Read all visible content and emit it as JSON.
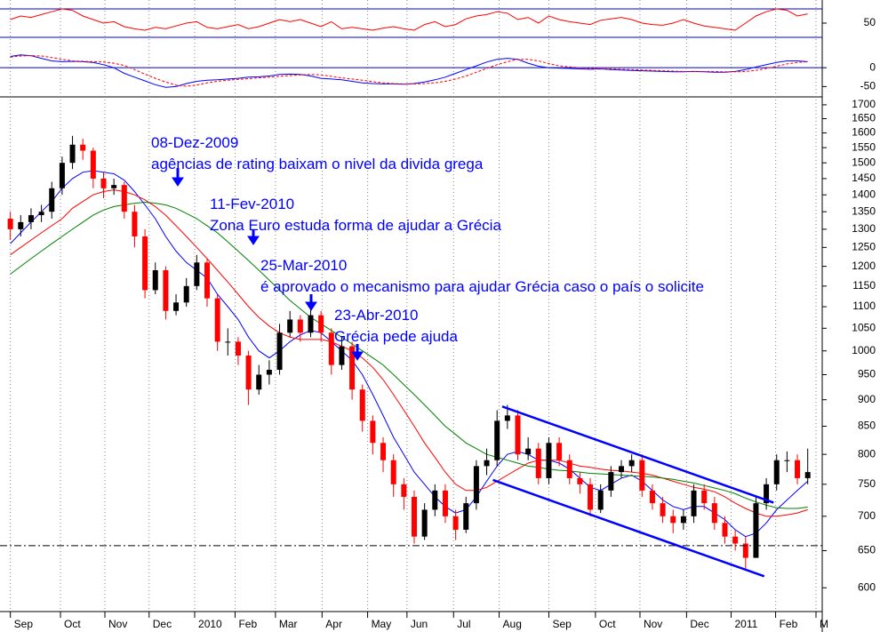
{
  "chart_data": [
    {
      "type": "candlestick",
      "x": [
        0,
        1,
        2,
        3,
        4,
        5,
        6,
        7,
        8,
        9,
        10,
        11,
        12,
        13,
        14,
        15,
        16,
        17,
        18,
        19,
        20,
        21,
        22,
        23,
        24,
        25,
        26,
        27,
        28,
        29,
        30,
        31,
        32,
        33,
        34,
        35,
        36,
        37,
        38,
        39,
        40,
        41,
        42,
        43,
        44,
        45,
        46,
        47,
        48,
        49,
        50,
        51,
        52,
        53,
        54,
        55,
        56,
        57,
        58,
        59,
        60,
        61,
        62,
        63,
        64,
        65,
        66,
        67,
        68,
        69,
        70,
        71,
        72,
        73,
        74,
        75,
        76,
        77
      ],
      "open": [
        1330,
        1300,
        1320,
        1340,
        1350,
        1420,
        1500,
        1560,
        1540,
        1450,
        1420,
        1430,
        1350,
        1280,
        1140,
        1190,
        1090,
        1110,
        1150,
        1210,
        1120,
        1020,
        1020,
        990,
        920,
        950,
        960,
        1040,
        1070,
        1040,
        1080,
        1040,
        970,
        1010,
        920,
        860,
        820,
        790,
        750,
        730,
        670,
        710,
        740,
        700,
        680,
        720,
        780,
        790,
        860,
        870,
        800,
        810,
        760,
        820,
        790,
        760,
        750,
        710,
        740,
        770,
        780,
        790,
        740,
        720,
        700,
        690,
        700,
        740,
        720,
        690,
        670,
        660,
        640,
        720,
        750,
        790,
        790,
        760
      ],
      "high": [
        1350,
        1340,
        1360,
        1370,
        1440,
        1520,
        1590,
        1580,
        1550,
        1470,
        1450,
        1440,
        1370,
        1300,
        1210,
        1200,
        1130,
        1170,
        1230,
        1220,
        1130,
        1050,
        1030,
        1000,
        970,
        980,
        1060,
        1090,
        1080,
        1100,
        1090,
        1050,
        1030,
        1020,
        930,
        870,
        830,
        800,
        760,
        740,
        720,
        750,
        750,
        710,
        730,
        790,
        810,
        880,
        890,
        880,
        830,
        820,
        830,
        830,
        800,
        770,
        760,
        750,
        780,
        790,
        800,
        800,
        750,
        730,
        710,
        710,
        750,
        750,
        730,
        700,
        680,
        670,
        730,
        760,
        800,
        805,
        800,
        810
      ],
      "low": [
        1270,
        1280,
        1300,
        1320,
        1330,
        1400,
        1480,
        1510,
        1420,
        1390,
        1400,
        1330,
        1250,
        1120,
        1130,
        1070,
        1080,
        1100,
        1140,
        1100,
        1000,
        990,
        970,
        890,
        910,
        930,
        950,
        1030,
        1020,
        1030,
        1020,
        950,
        960,
        900,
        840,
        800,
        770,
        730,
        710,
        660,
        665,
        700,
        690,
        665,
        675,
        710,
        765,
        780,
        845,
        790,
        790,
        750,
        750,
        780,
        750,
        735,
        700,
        705,
        730,
        760,
        770,
        730,
        710,
        690,
        675,
        680,
        690,
        710,
        680,
        660,
        650,
        625,
        640,
        710,
        740,
        770,
        750,
        750
      ],
      "close": [
        1300,
        1320,
        1340,
        1350,
        1420,
        1500,
        1560,
        1540,
        1450,
        1420,
        1430,
        1350,
        1280,
        1140,
        1190,
        1090,
        1110,
        1150,
        1210,
        1120,
        1020,
        1020,
        990,
        920,
        950,
        960,
        1040,
        1070,
        1040,
        1080,
        1040,
        970,
        1010,
        920,
        860,
        820,
        790,
        750,
        730,
        670,
        710,
        740,
        700,
        680,
        720,
        780,
        790,
        860,
        870,
        800,
        810,
        760,
        820,
        790,
        760,
        750,
        710,
        740,
        770,
        780,
        790,
        740,
        720,
        700,
        690,
        700,
        740,
        720,
        690,
        670,
        660,
        640,
        720,
        750,
        790,
        790,
        760,
        770
      ],
      "up_color": "#000000",
      "down_color": "#ff0000",
      "series": [
        {
          "color": "#0000ff",
          "values": [
            1260,
            1290,
            1320,
            1350,
            1380,
            1420,
            1450,
            1470,
            1475,
            1470,
            1465,
            1445,
            1410,
            1370,
            1330,
            1280,
            1240,
            1210,
            1190,
            1170,
            1130,
            1100,
            1070,
            1030,
            1000,
            985,
            1000,
            1020,
            1035,
            1045,
            1040,
            1020,
            1000,
            980,
            950,
            910,
            870,
            830,
            800,
            770,
            750,
            730,
            715,
            705,
            710,
            730,
            755,
            780,
            800,
            805,
            800,
            790,
            790,
            785,
            775,
            760,
            745,
            740,
            750,
            760,
            765,
            755,
            740,
            725,
            715,
            710,
            715,
            715,
            705,
            695,
            680,
            670,
            675,
            690,
            710,
            725,
            740,
            755
          ]
        },
        {
          "color": "#ff0000",
          "values": [
            1230,
            1250,
            1270,
            1290,
            1310,
            1330,
            1360,
            1380,
            1400,
            1410,
            1415,
            1410,
            1400,
            1385,
            1365,
            1340,
            1310,
            1280,
            1250,
            1220,
            1190,
            1160,
            1130,
            1100,
            1075,
            1055,
            1040,
            1030,
            1025,
            1025,
            1025,
            1020,
            1010,
            1000,
            985,
            965,
            940,
            910,
            880,
            850,
            820,
            795,
            770,
            750,
            740,
            740,
            745,
            755,
            765,
            775,
            785,
            790,
            790,
            790,
            785,
            780,
            778,
            775,
            773,
            772,
            770,
            768,
            765,
            760,
            755,
            750,
            745,
            742,
            738,
            730,
            720,
            712,
            705,
            700,
            700,
            702,
            705,
            710
          ]
        },
        {
          "color": "#008000",
          "values": [
            1180,
            1200,
            1220,
            1240,
            1260,
            1280,
            1300,
            1320,
            1340,
            1355,
            1365,
            1370,
            1375,
            1378,
            1375,
            1370,
            1360,
            1345,
            1330,
            1310,
            1290,
            1265,
            1240,
            1215,
            1190,
            1165,
            1140,
            1115,
            1095,
            1075,
            1060,
            1045,
            1030,
            1015,
            1000,
            985,
            970,
            950,
            930,
            910,
            890,
            870,
            850,
            835,
            820,
            810,
            800,
            795,
            790,
            785,
            780,
            778,
            775,
            773,
            772,
            770,
            768,
            767,
            766,
            765,
            764,
            763,
            762,
            760,
            758,
            755,
            752,
            748,
            744,
            740,
            735,
            728,
            722,
            717,
            713,
            712,
            712,
            714
          ]
        }
      ],
      "xlim": [
        -1,
        78.4
      ],
      "xticks": [
        {
          "value": 0,
          "label": "Sep"
        },
        {
          "value": 4.84,
          "label": "Oct"
        },
        {
          "value": 9.13,
          "label": "Nov"
        },
        {
          "value": 13.4,
          "label": "Dec"
        },
        {
          "value": 17.8,
          "label": "2010"
        },
        {
          "value": 21.7,
          "label": "Feb"
        },
        {
          "value": 25.6,
          "label": "Mar"
        },
        {
          "value": 30.1,
          "label": "Apr"
        },
        {
          "value": 34.5,
          "label": "May"
        },
        {
          "value": 38.3,
          "label": "Jun"
        },
        {
          "value": 42.8,
          "label": "Jul"
        },
        {
          "value": 47.2,
          "label": "Aug"
        },
        {
          "value": 52,
          "label": "Sep"
        },
        {
          "value": 56.5,
          "label": "Oct"
        },
        {
          "value": 60.8,
          "label": "Nov"
        },
        {
          "value": 65.3,
          "label": "Dec"
        },
        {
          "value": 69.6,
          "label": "2011"
        },
        {
          "value": 73.9,
          "label": "Feb"
        },
        {
          "value": 77.8,
          "label": "M"
        }
      ],
      "ylim": [
        570,
        1726
      ],
      "yticks": [
        600,
        650,
        700,
        750,
        800,
        850,
        900,
        950,
        1000,
        1050,
        1100,
        1150,
        1200,
        1250,
        1300,
        1350,
        1400,
        1450,
        1500,
        1550,
        1600,
        1650,
        1700
      ],
      "log_scale": true,
      "grid": true,
      "hline": 657,
      "trend_color": "#0000ff",
      "trend_lines": [
        {
          "x": [
            47.5,
            73.7
          ],
          "y": [
            887,
            721
          ]
        },
        {
          "x": [
            46.6,
            72.8
          ],
          "y": [
            757,
            615
          ]
        }
      ],
      "annotations": [
        {
          "title": "08-Dez-2009",
          "text": "agências de rating baixam o nivel da divida grega"
        },
        {
          "title": "11-Fev-2010",
          "text": "Zona Euro estuda forma de ajudar a Grécia"
        },
        {
          "title": "25-Mar-2010",
          "text": "é aprovado o mecanismo para ajudar Grécia caso o país o solicite"
        },
        {
          "title": "23-Abr-2010",
          "text": "Grécia pede ajuda"
        }
      ]
    },
    {
      "type": "line",
      "series": [
        {
          "color": "#ff0000",
          "values": [
            55,
            60,
            58,
            62,
            66,
            70,
            68,
            60,
            55,
            50,
            52,
            45,
            42,
            40,
            44,
            42,
            46,
            50,
            52,
            44,
            42,
            45,
            48,
            42,
            45,
            50,
            55,
            52,
            55,
            50,
            45,
            52,
            42,
            44,
            42,
            40,
            43,
            45,
            42,
            40,
            48,
            52,
            45,
            48,
            56,
            60,
            62,
            66,
            64,
            55,
            58,
            50,
            60,
            55,
            52,
            50,
            48,
            54,
            56,
            58,
            55,
            50,
            48,
            47,
            50,
            55,
            50,
            46,
            44,
            42,
            40,
            50,
            60,
            66,
            70,
            68,
            60,
            63
          ]
        }
      ],
      "ylim": [
        17.5,
        82.5
      ],
      "yticks": [
        50
      ],
      "hlines": [
        70,
        30
      ]
    },
    {
      "type": "line",
      "series": [
        {
          "color": "#0000ff",
          "values": [
            30,
            34,
            32,
            25,
            18,
            16,
            17,
            16,
            14,
            8,
            0,
            -15,
            -25,
            -35,
            -45,
            -52,
            -50,
            -42,
            -36,
            -33,
            -32,
            -30,
            -28,
            -25,
            -24,
            -22,
            -18,
            -17,
            -18,
            -22,
            -28,
            -30,
            -32,
            -36,
            -40,
            -42,
            -43,
            -43,
            -44,
            -42,
            -38,
            -32,
            -25,
            -15,
            -5,
            5,
            15,
            22,
            25,
            22,
            12,
            4,
            0,
            -1,
            -2,
            -3,
            -4,
            -3,
            -5,
            -6,
            -7,
            -8,
            -9,
            -10,
            -11,
            -11,
            -10,
            -11,
            -12,
            -12,
            -10,
            -5,
            2,
            8,
            14,
            18,
            18,
            16
          ]
        },
        {
          "color": "#ff0000",
          "dashed": true,
          "values": [
            28,
            31,
            32,
            31,
            27,
            22,
            18,
            17,
            16,
            15,
            12,
            6,
            -5,
            -17,
            -28,
            -38,
            -46,
            -49,
            -46,
            -40,
            -36,
            -33,
            -31,
            -29,
            -27,
            -25,
            -23,
            -21,
            -19,
            -18,
            -19,
            -23,
            -27,
            -30,
            -33,
            -37,
            -40,
            -42,
            -43,
            -43,
            -42,
            -40,
            -36,
            -30,
            -22,
            -12,
            -2,
            8,
            16,
            22,
            22,
            18,
            11,
            5,
            2,
            0,
            -2,
            -3,
            -3,
            -4,
            -5,
            -6,
            -7,
            -8,
            -9,
            -10,
            -10,
            -10,
            -10,
            -11,
            -11,
            -10,
            -7,
            -2,
            4,
            10,
            14,
            16
          ]
        }
      ],
      "ylim": [
        -75,
        57
      ],
      "yticks": [
        0,
        -50
      ],
      "hlines": [
        0
      ]
    }
  ]
}
